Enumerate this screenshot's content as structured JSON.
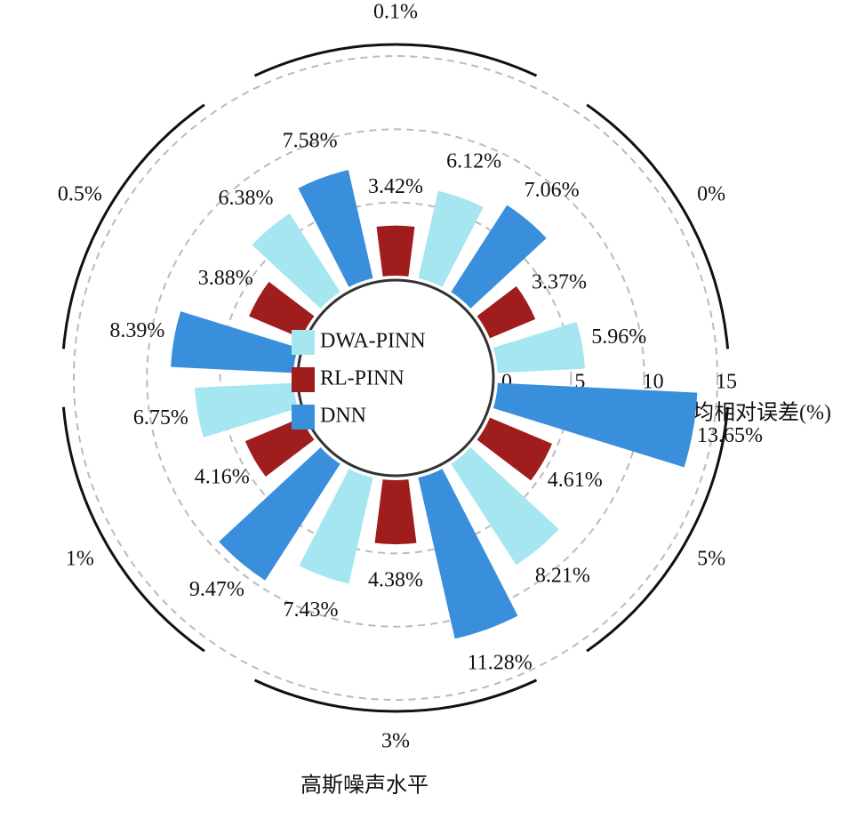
{
  "chart_data": {
    "type": "radial_bar",
    "x_label": "高斯噪声水平",
    "y_label": "平均相对误差(%)",
    "categories": [
      "0%",
      "0.1%",
      "0.5%",
      "1%",
      "3%",
      "5%"
    ],
    "series": [
      {
        "name": "DWA-PINN",
        "color": "#a6e6f0",
        "values": [
          5.96,
          6.12,
          6.38,
          6.75,
          7.43,
          8.21
        ],
        "value_labels": [
          "5.96%",
          "6.12%",
          "6.38%",
          "6.75%",
          "7.43%",
          "8.21%"
        ]
      },
      {
        "name": "RL-PINN",
        "color": "#a01d1d",
        "values": [
          3.37,
          3.42,
          3.88,
          4.16,
          4.38,
          4.61
        ],
        "value_labels": [
          "3.37%",
          "3.42%",
          "3.88%",
          "4.16%",
          "4.38%",
          "4.61%"
        ]
      },
      {
        "name": "DNN",
        "color": "#3a8fdd",
        "values": [
          7.06,
          7.58,
          8.39,
          9.47,
          11.28,
          13.65
        ],
        "value_labels": [
          "7.06%",
          "7.58%",
          "8.39%",
          "9.47%",
          "11.28%",
          "13.65%"
        ]
      }
    ],
    "ylim": [
      0,
      15
    ],
    "yticks": [
      0,
      5,
      10,
      15
    ],
    "grid": true
  }
}
